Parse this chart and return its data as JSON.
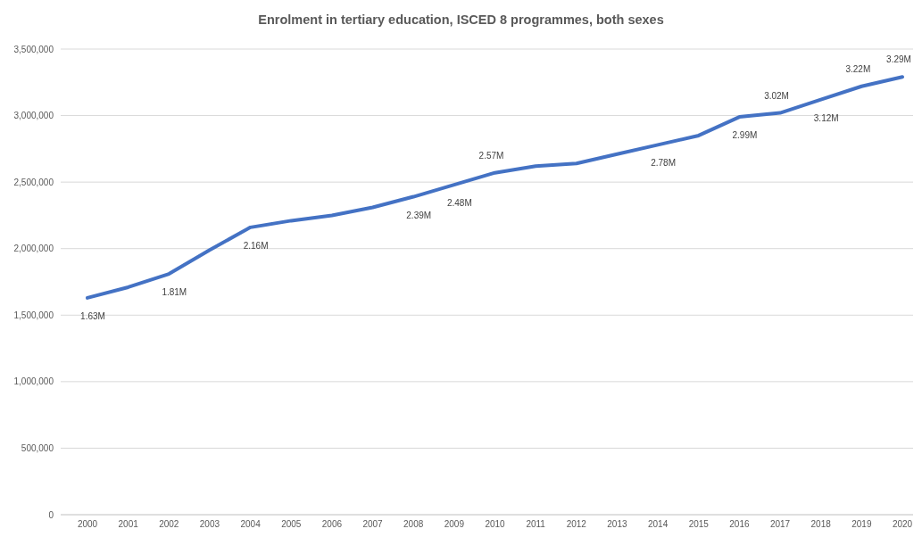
{
  "chart_data": {
    "type": "line",
    "title": "Enrolment in tertiary education, ISCED 8 programmes, both sexes",
    "categories": [
      "2000",
      "2001",
      "2002",
      "2003",
      "2004",
      "2005",
      "2006",
      "2007",
      "2008",
      "2009",
      "2010",
      "2011",
      "2012",
      "2013",
      "2014",
      "2015",
      "2016",
      "2017",
      "2018",
      "2019",
      "2020"
    ],
    "series": [
      {
        "color": "#4472c4",
        "values": [
          1630000,
          1710000,
          1810000,
          1990000,
          2160000,
          2210000,
          2250000,
          2310000,
          2390000,
          2480000,
          2570000,
          2620000,
          2640000,
          2710000,
          2780000,
          2850000,
          2990000,
          3020000,
          3120000,
          3220000,
          3290000
        ],
        "value_labels": [
          "1.63M",
          null,
          "1.81M",
          null,
          "2.16M",
          null,
          null,
          null,
          "2.39M",
          "2.48M",
          "2.57M",
          null,
          null,
          null,
          "2.78M",
          null,
          "2.99M",
          "3.02M",
          "3.12M",
          "3.22M",
          "3.29M"
        ]
      }
    ],
    "ylim": [
      0,
      3500000
    ],
    "yticks": [
      {
        "value": 0,
        "label": "0"
      },
      {
        "value": 500000,
        "label": "500,000"
      },
      {
        "value": 1000000,
        "label": "1,000,000"
      },
      {
        "value": 1500000,
        "label": "1,500,000"
      },
      {
        "value": 2000000,
        "label": "2,000,000"
      },
      {
        "value": 2500000,
        "label": "2,500,000"
      },
      {
        "value": 3000000,
        "label": "3,000,000"
      },
      {
        "value": 3500000,
        "label": "3,500,000"
      }
    ],
    "grid": "y",
    "marker": "none",
    "line_style": "solid"
  }
}
